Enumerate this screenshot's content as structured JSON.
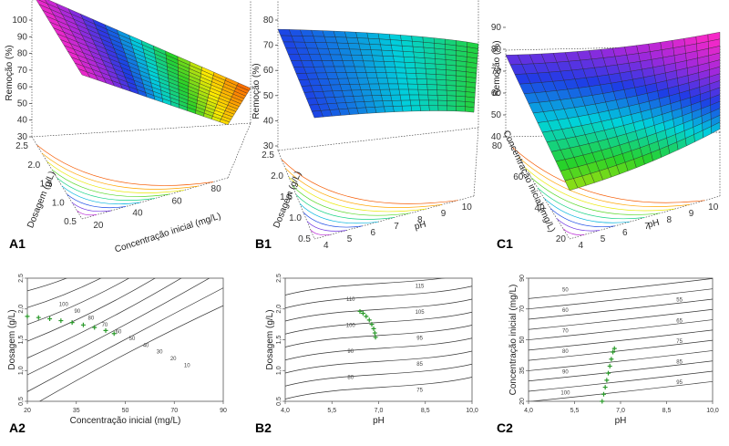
{
  "surface_panels": [
    {
      "id": "A1",
      "label": "A1",
      "zlabel": "Remoção (%)",
      "xlabel": "Concentração inicial (mg/L)",
      "ylabel": "Dosagem (g/L)",
      "xticks": [
        "20",
        "40",
        "60",
        "80"
      ],
      "yticks": [
        "0.5",
        "1.0",
        "1.5",
        "2.0",
        "2.5"
      ],
      "zticks": [
        "100",
        "90",
        "80",
        "70",
        "60",
        "50",
        "40",
        "30"
      ]
    },
    {
      "id": "B1",
      "label": "B1",
      "zlabel": "Remoção (%)",
      "xlabel": "pH",
      "ylabel": "Dosagem (g/L)",
      "xticks": [
        "4",
        "5",
        "6",
        "7",
        "8",
        "9",
        "10"
      ],
      "yticks": [
        "0.5",
        "1.0",
        "1.5",
        "2.0",
        "2.5"
      ],
      "zticks": [
        "80",
        "70",
        "60",
        "50",
        "40",
        "30"
      ]
    },
    {
      "id": "C1",
      "label": "C1",
      "zlabel": "Remoção (%)",
      "xlabel": "pH",
      "ylabel": "Concentração inicial (mg/L)",
      "xticks": [
        "4",
        "5",
        "6",
        "7",
        "8",
        "9",
        "10"
      ],
      "yticks": [
        "20",
        "40",
        "60",
        "80"
      ],
      "zticks": [
        "90",
        "80",
        "70",
        "60",
        "50",
        "40"
      ]
    }
  ],
  "chart_data": [
    {
      "type": "contour",
      "id": "A2",
      "label": "A2",
      "xlabel": "Concentração inicial (mg/L)",
      "ylabel": "Dosagem (g/L)",
      "xlim": [
        20,
        90
      ],
      "ylim": [
        0.5,
        2.5
      ],
      "xticks": [
        "20",
        "35",
        "50",
        "70",
        "90"
      ],
      "yticks": [
        "0,5",
        "1,0",
        "1,5",
        "2,0",
        "2,5"
      ],
      "contour_labels": [
        "100",
        "90",
        "80",
        "70",
        "60",
        "50",
        "40",
        "30",
        "20",
        "10"
      ],
      "optimum_path": [
        {
          "x": 20,
          "y": 1.88
        },
        {
          "x": 24,
          "y": 1.86
        },
        {
          "x": 28,
          "y": 1.84
        },
        {
          "x": 32,
          "y": 1.81
        },
        {
          "x": 36,
          "y": 1.78
        },
        {
          "x": 40,
          "y": 1.74
        },
        {
          "x": 44,
          "y": 1.7
        },
        {
          "x": 48,
          "y": 1.65
        },
        {
          "x": 51,
          "y": 1.6
        }
      ]
    },
    {
      "type": "contour",
      "id": "B2",
      "label": "B2",
      "xlabel": "pH",
      "ylabel": "Dosagem (g/L)",
      "xlim": [
        4,
        10
      ],
      "ylim": [
        0.5,
        2.5
      ],
      "xticks": [
        "4,0",
        "5,5",
        "7,0",
        "8,5",
        "10,0"
      ],
      "yticks": [
        "0,5",
        "1,0",
        "1,5",
        "2,0",
        "2,5"
      ],
      "contour_labels": [
        "115",
        "110",
        "105",
        "100",
        "95",
        "90",
        "85",
        "80",
        "75"
      ],
      "optimum_path": [
        {
          "x": 6.4,
          "y": 1.96
        },
        {
          "x": 6.5,
          "y": 1.93
        },
        {
          "x": 6.6,
          "y": 1.88
        },
        {
          "x": 6.7,
          "y": 1.82
        },
        {
          "x": 6.78,
          "y": 1.75
        },
        {
          "x": 6.84,
          "y": 1.68
        },
        {
          "x": 6.88,
          "y": 1.61
        },
        {
          "x": 6.9,
          "y": 1.54
        }
      ]
    },
    {
      "type": "contour",
      "id": "C2",
      "label": "C2",
      "xlabel": "pH",
      "ylabel": "Concentração inicial (mg/L)",
      "xlim": [
        4,
        10
      ],
      "ylim": [
        20,
        90
      ],
      "xticks": [
        "4,0",
        "5,5",
        "7,0",
        "8,5",
        "10,0"
      ],
      "yticks": [
        "20",
        "35",
        "50",
        "70",
        "90"
      ],
      "contour_labels": [
        "100",
        "95",
        "90",
        "85",
        "80",
        "75",
        "70",
        "65",
        "60",
        "55",
        "50"
      ],
      "optimum_path": [
        {
          "x": 6.4,
          "y": 20
        },
        {
          "x": 6.45,
          "y": 24
        },
        {
          "x": 6.5,
          "y": 28
        },
        {
          "x": 6.55,
          "y": 32
        },
        {
          "x": 6.6,
          "y": 36
        },
        {
          "x": 6.65,
          "y": 40
        },
        {
          "x": 6.7,
          "y": 44
        },
        {
          "x": 6.75,
          "y": 48
        },
        {
          "x": 6.8,
          "y": 50
        }
      ]
    }
  ]
}
